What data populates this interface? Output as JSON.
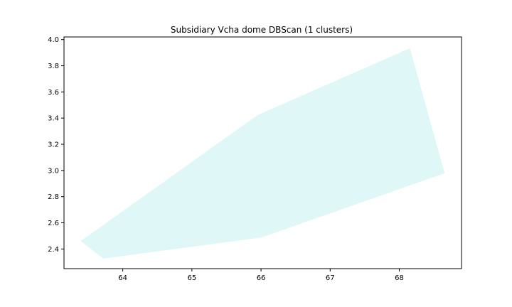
{
  "chart_data": {
    "type": "area",
    "title": "Subsidiary Vcha dome DBScan (1 clusters)",
    "xlabel": "",
    "ylabel": "",
    "xlim": [
      63.15,
      68.9
    ],
    "ylim": [
      2.25,
      4.02
    ],
    "x_ticks": [
      64,
      65,
      66,
      67,
      68
    ],
    "y_ticks": [
      2.4,
      2.6,
      2.8,
      3.0,
      3.2,
      3.4,
      3.6,
      3.8,
      4.0
    ],
    "x_tick_labels": [
      "64",
      "65",
      "66",
      "67",
      "68"
    ],
    "y_tick_labels": [
      "2.4",
      "2.6",
      "2.8",
      "3.0",
      "3.2",
      "3.4",
      "3.6",
      "3.8",
      "4.0"
    ],
    "grid": false,
    "series": [
      {
        "fill_color": "#dff7f6",
        "points": [
          {
            "x": 63.4,
            "y": 2.46
          },
          {
            "x": 63.72,
            "y": 2.33
          },
          {
            "x": 66.0,
            "y": 2.49
          },
          {
            "x": 68.65,
            "y": 2.98
          },
          {
            "x": 68.15,
            "y": 3.93
          },
          {
            "x": 65.95,
            "y": 3.42
          }
        ]
      }
    ]
  }
}
